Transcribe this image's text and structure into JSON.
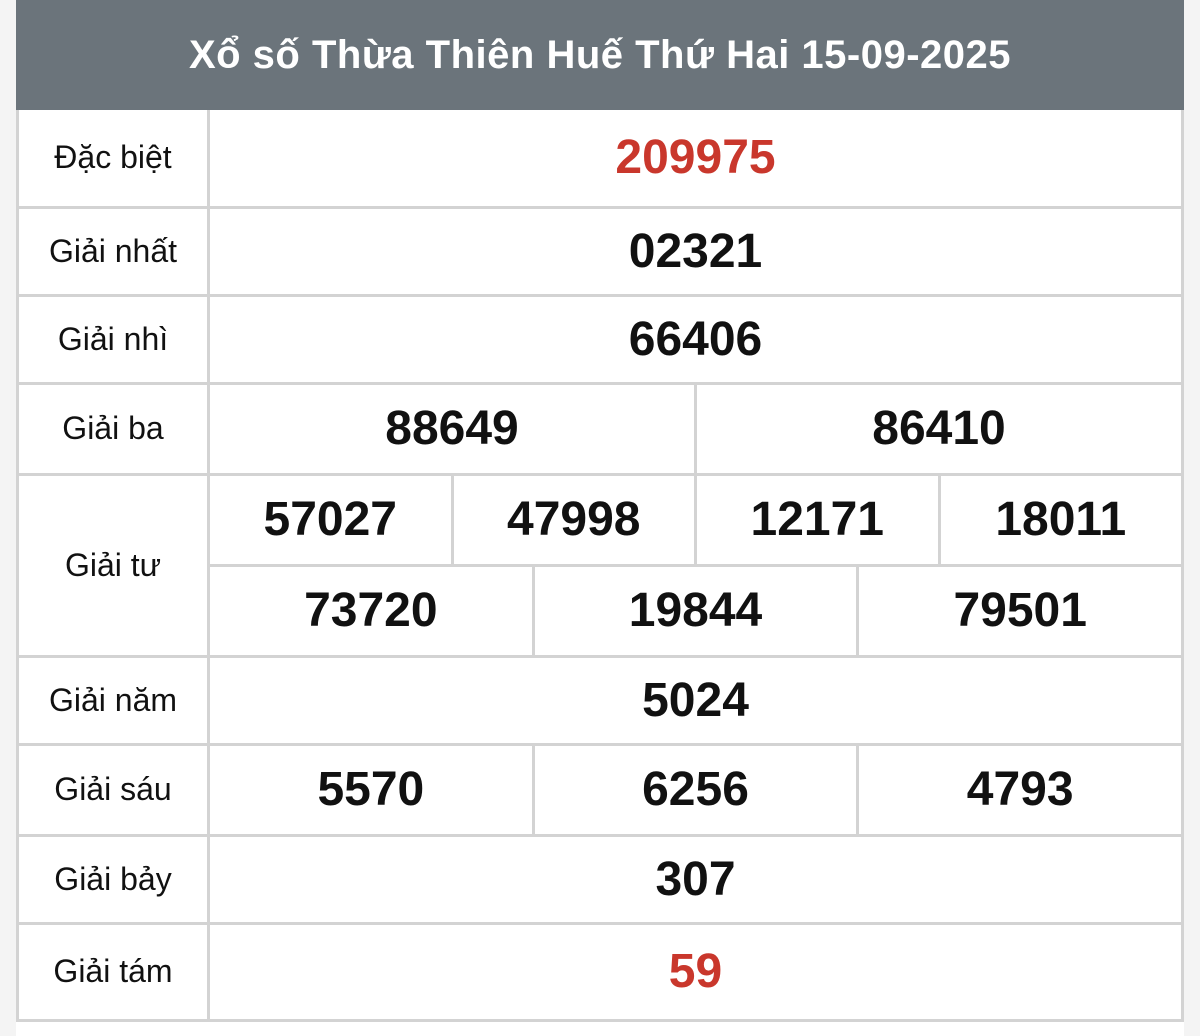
{
  "title": "Xổ số Thừa Thiên Huế Thứ Hai 15-09-2025",
  "colors": {
    "header_bg": "#6b747b",
    "highlight": "#c9372c",
    "border": "#d3d3d3"
  },
  "prizes": {
    "special": {
      "label": "Đặc biệt",
      "numbers": [
        "209975"
      ]
    },
    "first": {
      "label": "Giải nhất",
      "numbers": [
        "02321"
      ]
    },
    "second": {
      "label": "Giải nhì",
      "numbers": [
        "66406"
      ]
    },
    "third": {
      "label": "Giải ba",
      "numbers": [
        "88649",
        "86410"
      ]
    },
    "fourth": {
      "label": "Giải tư",
      "numbers": [
        "57027",
        "47998",
        "12171",
        "18011",
        "73720",
        "19844",
        "79501"
      ]
    },
    "fifth": {
      "label": "Giải năm",
      "numbers": [
        "5024"
      ]
    },
    "sixth": {
      "label": "Giải sáu",
      "numbers": [
        "5570",
        "6256",
        "4793"
      ]
    },
    "seventh": {
      "label": "Giải bảy",
      "numbers": [
        "307"
      ]
    },
    "eighth": {
      "label": "Giải tám",
      "numbers": [
        "59"
      ]
    }
  }
}
